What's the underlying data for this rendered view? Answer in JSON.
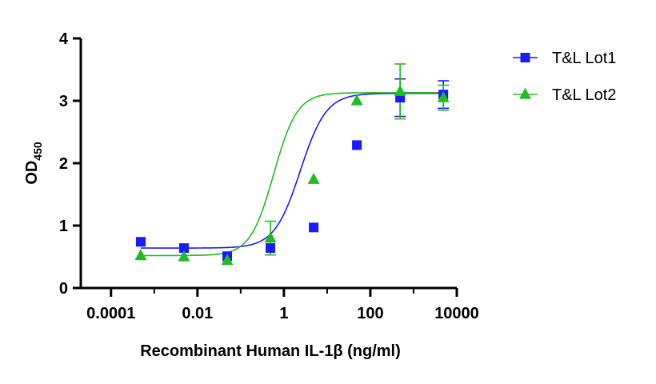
{
  "chart_data": {
    "type": "scatter",
    "xlabel": "Recombinant Human IL-1β (ng/ml)",
    "ylabel_main": "OD",
    "ylabel_sub": "450",
    "x_scale": "log",
    "xlim": [
      2e-05,
      10000
    ],
    "ylim": [
      0,
      4
    ],
    "x_ticks": [
      0.0001,
      0.01,
      1,
      100,
      10000
    ],
    "x_tick_labels": [
      "0.0001",
      "0.01",
      "1",
      "100",
      "10000"
    ],
    "y_ticks": [
      0,
      1,
      2,
      3,
      4
    ],
    "y_tick_labels": [
      "0",
      "1",
      "2",
      "3",
      "4"
    ],
    "grid": false,
    "legend_position": "top-right",
    "fit": "4PL sigmoidal",
    "series": [
      {
        "name": "T&L Lot1",
        "color": "#1a1aff",
        "marker": "square",
        "points": [
          {
            "x": 0.000488,
            "y": 0.74,
            "err": 0
          },
          {
            "x": 0.00488,
            "y": 0.64,
            "err": 0
          },
          {
            "x": 0.0488,
            "y": 0.51,
            "err": 0
          },
          {
            "x": 0.488,
            "y": 0.64,
            "err": 0
          },
          {
            "x": 4.88,
            "y": 0.97,
            "err": 0
          },
          {
            "x": 48.8,
            "y": 2.29,
            "err": 0
          },
          {
            "x": 488,
            "y": 3.05,
            "err": 0.3
          },
          {
            "x": 4880,
            "y": 3.1,
            "err": 0.22
          }
        ],
        "fit_params": {
          "bottom": 0.64,
          "top": 3.12,
          "ec50": 2.4,
          "hill": 1.45
        }
      },
      {
        "name": "T&L Lot2",
        "color": "#22bb22",
        "marker": "triangle",
        "points": [
          {
            "x": 0.000488,
            "y": 0.52,
            "err": 0
          },
          {
            "x": 0.00488,
            "y": 0.5,
            "err": 0
          },
          {
            "x": 0.0488,
            "y": 0.44,
            "err": 0
          },
          {
            "x": 0.488,
            "y": 0.8,
            "err": 0.27
          },
          {
            "x": 4.88,
            "y": 1.74,
            "err": 0
          },
          {
            "x": 48.8,
            "y": 3.0,
            "err": 0
          },
          {
            "x": 488,
            "y": 3.15,
            "err": 0.44
          },
          {
            "x": 4880,
            "y": 3.05,
            "err": 0.2
          }
        ],
        "fit_params": {
          "bottom": 0.52,
          "top": 3.13,
          "ec50": 0.58,
          "hill": 1.6
        }
      }
    ]
  }
}
